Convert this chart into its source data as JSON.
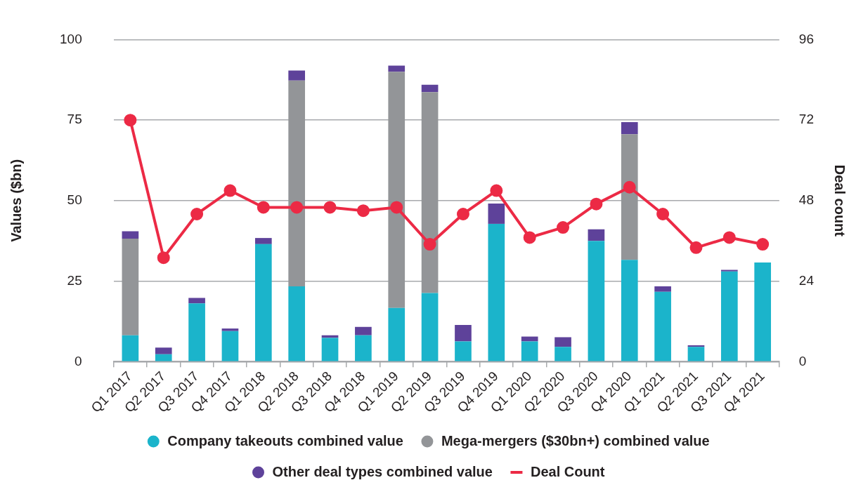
{
  "chart_data": {
    "type": "bar",
    "stacked": true,
    "ylabel": "Values ($bn)",
    "y2label": "Deal count",
    "categories": [
      "Q1 2017",
      "Q2 2017",
      "Q3 2017",
      "Q4 2017",
      "Q1 2018",
      "Q2 2018",
      "Q3 2018",
      "Q4 2018",
      "Q1 2019",
      "Q2 2019",
      "Q3 2019",
      "Q4 2019",
      "Q1 2020",
      "Q2 2020",
      "Q3 2020",
      "Q4 2020",
      "Q1 2021",
      "Q2 2021",
      "Q3 2021",
      "Q4 2021"
    ],
    "series": [
      {
        "name": "Company takeouts combined value",
        "color": "#1bb4cb",
        "values": [
          8.2,
          2.3,
          18.1,
          9.5,
          36.5,
          23.4,
          7.4,
          8.2,
          16.7,
          21.3,
          6.3,
          42.8,
          6.3,
          4.6,
          37.5,
          31.6,
          21.7,
          4.6,
          28.0,
          30.8
        ]
      },
      {
        "name": "Mega-mergers ($30bn+) combined value",
        "color": "#939598",
        "values": [
          30.0,
          null,
          null,
          null,
          null,
          63.9,
          null,
          null,
          73.3,
          62.4,
          null,
          null,
          null,
          null,
          null,
          39.0,
          null,
          null,
          null,
          null
        ]
      },
      {
        "name": "Other deal types combined value",
        "color": "#5e429a",
        "values": [
          2.3,
          2.1,
          1.7,
          0.8,
          1.9,
          3.1,
          0.8,
          2.6,
          1.9,
          2.3,
          5.1,
          6.3,
          1.5,
          3.0,
          3.6,
          3.8,
          1.7,
          0.5,
          0.5,
          null
        ]
      },
      {
        "name": "Deal Count",
        "type": "line",
        "axis": "y2",
        "color": "#ec2a45",
        "marker": "circle",
        "line_style": "solid",
        "values": [
          72,
          31,
          44,
          51,
          46,
          46,
          46,
          45,
          46,
          35,
          44,
          51,
          37,
          40,
          47,
          52,
          44,
          34,
          37,
          35
        ]
      }
    ],
    "ylim": [
      0,
      100
    ],
    "yticks": [
      0,
      25,
      50,
      75,
      100
    ],
    "y2lim": [
      0,
      96
    ],
    "y2ticks": [
      0,
      24,
      48,
      72,
      96
    ],
    "grid": "y",
    "legend": "bottom"
  }
}
